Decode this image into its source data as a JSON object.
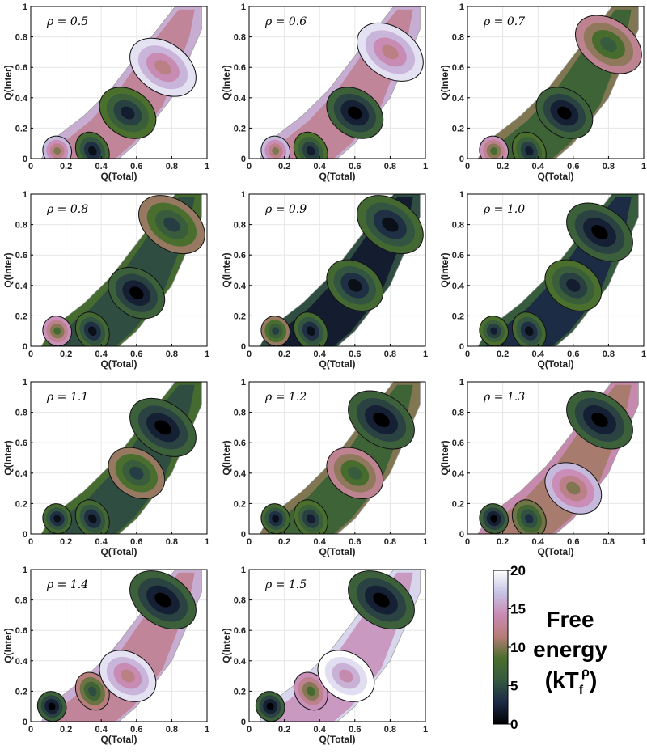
{
  "chart_data": {
    "type": "heatmap",
    "panels": [
      {
        "label": "ρ = 0.5",
        "rho": 0.5,
        "basins": [
          {
            "q_total": 0.15,
            "q_inter": 0.05,
            "depth": 10
          },
          {
            "q_total": 0.35,
            "q_inter": 0.05,
            "depth": 1
          },
          {
            "q_total": 0.55,
            "q_inter": 0.3,
            "depth": 2
          },
          {
            "q_total": 0.75,
            "q_inter": 0.6,
            "depth": 12
          }
        ]
      },
      {
        "label": "ρ = 0.6",
        "rho": 0.6,
        "basins": [
          {
            "q_total": 0.15,
            "q_inter": 0.05,
            "depth": 10
          },
          {
            "q_total": 0.35,
            "q_inter": 0.05,
            "depth": 2
          },
          {
            "q_total": 0.6,
            "q_inter": 0.3,
            "depth": 0
          },
          {
            "q_total": 0.8,
            "q_inter": 0.7,
            "depth": 12
          }
        ]
      },
      {
        "label": "ρ = 0.7",
        "rho": 0.7,
        "basins": [
          {
            "q_total": 0.15,
            "q_inter": 0.05,
            "depth": 8
          },
          {
            "q_total": 0.35,
            "q_inter": 0.05,
            "depth": 2
          },
          {
            "q_total": 0.55,
            "q_inter": 0.3,
            "depth": 0
          },
          {
            "q_total": 0.8,
            "q_inter": 0.75,
            "depth": 6
          }
        ]
      },
      {
        "label": "ρ = 0.8",
        "rho": 0.8,
        "basins": [
          {
            "q_total": 0.15,
            "q_inter": 0.1,
            "depth": 8
          },
          {
            "q_total": 0.35,
            "q_inter": 0.1,
            "depth": 1
          },
          {
            "q_total": 0.6,
            "q_inter": 0.35,
            "depth": 0
          },
          {
            "q_total": 0.8,
            "q_inter": 0.8,
            "depth": 4
          }
        ]
      },
      {
        "label": "ρ = 0.9",
        "rho": 0.9,
        "basins": [
          {
            "q_total": 0.15,
            "q_inter": 0.1,
            "depth": 4
          },
          {
            "q_total": 0.35,
            "q_inter": 0.1,
            "depth": 1
          },
          {
            "q_total": 0.6,
            "q_inter": 0.4,
            "depth": 1
          },
          {
            "q_total": 0.8,
            "q_inter": 0.8,
            "depth": 1
          }
        ]
      },
      {
        "label": "ρ = 1.0",
        "rho": 1.0,
        "basins": [
          {
            "q_total": 0.15,
            "q_inter": 0.1,
            "depth": 2
          },
          {
            "q_total": 0.35,
            "q_inter": 0.1,
            "depth": 1
          },
          {
            "q_total": 0.6,
            "q_inter": 0.4,
            "depth": 2
          },
          {
            "q_total": 0.75,
            "q_inter": 0.75,
            "depth": 0
          }
        ]
      },
      {
        "label": "ρ = 1.1",
        "rho": 1.1,
        "basins": [
          {
            "q_total": 0.15,
            "q_inter": 0.1,
            "depth": 1
          },
          {
            "q_total": 0.35,
            "q_inter": 0.1,
            "depth": 1
          },
          {
            "q_total": 0.6,
            "q_inter": 0.4,
            "depth": 4
          },
          {
            "q_total": 0.75,
            "q_inter": 0.7,
            "depth": 0
          }
        ]
      },
      {
        "label": "ρ = 1.2",
        "rho": 1.2,
        "basins": [
          {
            "q_total": 0.15,
            "q_inter": 0.1,
            "depth": 1
          },
          {
            "q_total": 0.35,
            "q_inter": 0.1,
            "depth": 2
          },
          {
            "q_total": 0.6,
            "q_inter": 0.4,
            "depth": 6
          },
          {
            "q_total": 0.75,
            "q_inter": 0.75,
            "depth": 0
          }
        ]
      },
      {
        "label": "ρ = 1.3",
        "rho": 1.3,
        "basins": [
          {
            "q_total": 0.15,
            "q_inter": 0.1,
            "depth": 0
          },
          {
            "q_total": 0.35,
            "q_inter": 0.1,
            "depth": 3
          },
          {
            "q_total": 0.6,
            "q_inter": 0.3,
            "depth": 10
          },
          {
            "q_total": 0.75,
            "q_inter": 0.75,
            "depth": 0
          }
        ]
      },
      {
        "label": "ρ = 1.4",
        "rho": 1.4,
        "basins": [
          {
            "q_total": 0.12,
            "q_inter": 0.1,
            "depth": 0
          },
          {
            "q_total": 0.35,
            "q_inter": 0.2,
            "depth": 5
          },
          {
            "q_total": 0.55,
            "q_inter": 0.3,
            "depth": 12
          },
          {
            "q_total": 0.75,
            "q_inter": 0.8,
            "depth": 0
          }
        ]
      },
      {
        "label": "ρ = 1.5",
        "rho": 1.5,
        "basins": [
          {
            "q_total": 0.12,
            "q_inter": 0.1,
            "depth": 0
          },
          {
            "q_total": 0.35,
            "q_inter": 0.2,
            "depth": 8
          },
          {
            "q_total": 0.55,
            "q_inter": 0.3,
            "depth": 14
          },
          {
            "q_total": 0.75,
            "q_inter": 0.8,
            "depth": 0
          }
        ]
      }
    ],
    "xlabel": "Q(Total)",
    "ylabel": "Q(Inter)",
    "xlim": [
      0,
      1
    ],
    "ylim": [
      0,
      1
    ],
    "xticks": [
      "0",
      "0.2",
      "0.4",
      "0.6",
      "0.8",
      "1"
    ],
    "yticks": [
      "0",
      "0.2",
      "0.4",
      "0.6",
      "0.8",
      "1"
    ],
    "grid": true,
    "colorbar": {
      "label_lines": [
        "Free",
        "energy"
      ],
      "label_unit_base": "(kT",
      "label_unit_sub": "f",
      "label_unit_sup": "ρ",
      "label_unit_close": ")",
      "range": [
        0,
        20
      ],
      "ticks": [
        "0",
        "5",
        "10",
        "15",
        "20"
      ],
      "colormap": [
        "#000000",
        "#1c2a45",
        "#35593f",
        "#4a6f2c",
        "#b77d78",
        "#c98bb5",
        "#c7c4e5",
        "#ffffff"
      ]
    }
  }
}
